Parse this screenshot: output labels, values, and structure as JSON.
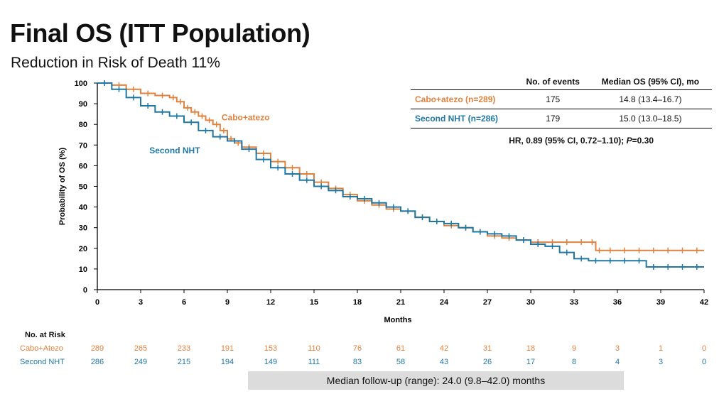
{
  "title": "Final OS (ITT Population)",
  "subtitle": "Reduction in Risk of Death 11%",
  "colors": {
    "cabo": "#e0823e",
    "nht": "#1f78a4"
  },
  "stats_table": {
    "headers": [
      "",
      "No. of events",
      "Median OS (95% CI), mo"
    ],
    "rows": [
      {
        "label": "Cabo+atezo (n=289)",
        "events": "175",
        "median": "14.8 (13.4–16.7)"
      },
      {
        "label": "Second NHT (n=286)",
        "events": "179",
        "median": "15.0 (13.0–18.5)"
      }
    ],
    "hr_text": "HR, 0.89 (95% CI, 0.72–1.10); ",
    "p_label": "P",
    "p_value": "=0.30"
  },
  "risk_table": {
    "header": "No. at Risk",
    "rows": [
      {
        "label": "Cabo+Atezo",
        "values": [
          "289",
          "265",
          "233",
          "191",
          "153",
          "110",
          "76",
          "61",
          "42",
          "31",
          "18",
          "9",
          "3",
          "1",
          "0"
        ]
      },
      {
        "label": "Second NHT",
        "values": [
          "286",
          "249",
          "215",
          "194",
          "149",
          "111",
          "83",
          "58",
          "43",
          "26",
          "17",
          "8",
          "4",
          "3",
          "0"
        ]
      }
    ]
  },
  "footer": "Median follow-up (range): 24.0 (9.8–42.0) months",
  "chart_data": {
    "type": "line",
    "xlabel": "Months",
    "ylabel": "Probability of OS (%)",
    "xlim": [
      0,
      42
    ],
    "ylim": [
      0,
      100
    ],
    "xticks": [
      0,
      3,
      6,
      9,
      12,
      15,
      18,
      21,
      24,
      27,
      30,
      33,
      36,
      39,
      42
    ],
    "yticks": [
      0,
      10,
      20,
      30,
      40,
      50,
      60,
      70,
      80,
      90,
      100
    ],
    "grid": false,
    "series": [
      {
        "name": "Cabo+atezo",
        "color": "#e0823e",
        "x": [
          0,
          1,
          2,
          3,
          4,
          5,
          5.5,
          6,
          6.5,
          7,
          7.5,
          8,
          8.5,
          9,
          9.5,
          10,
          11,
          12,
          13,
          14,
          15,
          16,
          17,
          18,
          19,
          20,
          21,
          22,
          23,
          24,
          25,
          26,
          27,
          28,
          29,
          30,
          31,
          32,
          33,
          34,
          34.5,
          35,
          36,
          37,
          38,
          39,
          40,
          41,
          42
        ],
        "y": [
          100,
          99,
          97,
          95,
          94,
          93,
          91,
          88,
          86,
          84,
          82,
          80,
          77,
          73,
          71,
          69,
          66,
          62,
          59,
          56,
          52,
          49,
          46,
          43,
          41,
          39,
          38,
          35,
          33,
          31,
          30,
          28,
          26,
          25,
          24,
          23,
          23,
          23,
          23,
          23,
          19,
          19,
          19,
          19,
          19,
          19,
          19,
          19,
          19
        ]
      },
      {
        "name": "Second NHT",
        "color": "#1f78a4",
        "x": [
          0,
          1,
          2,
          3,
          4,
          5,
          6,
          7,
          8,
          9,
          10,
          11,
          12,
          13,
          14,
          15,
          16,
          17,
          18,
          19,
          20,
          21,
          22,
          23,
          24,
          25,
          26,
          27,
          28,
          29,
          30,
          31,
          32,
          33,
          34,
          35,
          36,
          37,
          38,
          39,
          40,
          41,
          42
        ],
        "y": [
          100,
          97,
          93,
          89,
          86,
          84,
          81,
          77,
          74,
          72,
          68,
          63,
          59,
          56,
          53,
          50,
          48,
          45,
          44,
          42,
          40,
          38,
          35,
          33,
          32,
          30,
          28,
          27,
          26,
          24,
          22,
          21,
          18,
          15,
          14,
          14,
          14,
          14,
          11,
          11,
          11,
          11,
          11
        ]
      }
    ],
    "annotations": [
      {
        "text": "Cabo+atezo",
        "series": "Cabo+atezo",
        "x": 8.6,
        "y": 82
      },
      {
        "text": "Second NHT",
        "series": "Second NHT",
        "x": 3.6,
        "y": 66
      }
    ]
  }
}
